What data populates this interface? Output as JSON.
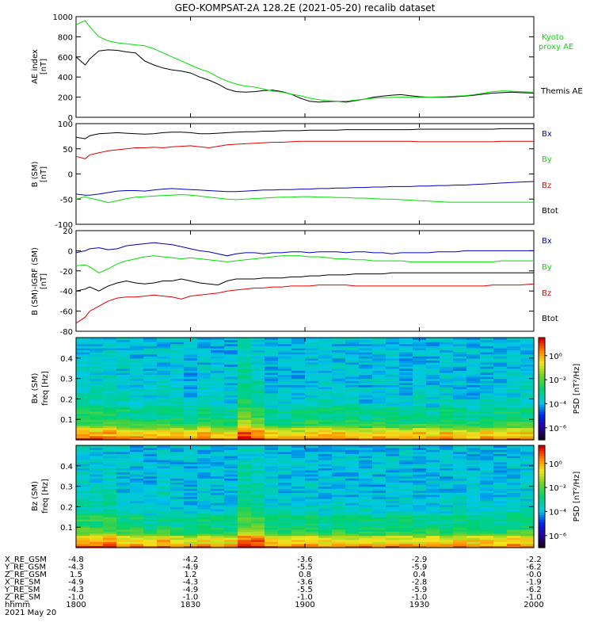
{
  "title": "GEO-KOMPSAT-2A 128.2E (2021-05-20) recalib dataset",
  "colors": {
    "black": "#000000",
    "green": "#00e000",
    "red": "#e00000",
    "blue": "#0000c0"
  },
  "chart_data": [
    {
      "type": "line",
      "panel": "ae",
      "ylabel": "AE index",
      "yunit": "[nT]",
      "ylim": [
        0,
        1000
      ],
      "yticks": [
        "0",
        "200",
        "400",
        "600",
        "800",
        "1000"
      ],
      "x": [
        0,
        2,
        3,
        5,
        7,
        9,
        11,
        13,
        15,
        17,
        19,
        21,
        23,
        25,
        27,
        29,
        31,
        33,
        35,
        37,
        39,
        41,
        43,
        45,
        47,
        49,
        51,
        53,
        55,
        57,
        59,
        61,
        63,
        65,
        67,
        69,
        71,
        73,
        75,
        77,
        79,
        81,
        83,
        85,
        87,
        89,
        91,
        93,
        95,
        97,
        100
      ],
      "series": [
        {
          "name": "Themis AE",
          "color": "black",
          "values": [
            600,
            520,
            580,
            660,
            670,
            665,
            650,
            640,
            560,
            520,
            490,
            470,
            460,
            440,
            400,
            370,
            330,
            280,
            255,
            250,
            255,
            265,
            270,
            255,
            230,
            190,
            160,
            150,
            155,
            160,
            150,
            165,
            180,
            200,
            210,
            220,
            225,
            215,
            205,
            200,
            200,
            200,
            205,
            210,
            220,
            230,
            240,
            245,
            250,
            245,
            240
          ]
        },
        {
          "name": "Kyoto proxy AE",
          "color": "green",
          "values": [
            920,
            960,
            900,
            800,
            760,
            740,
            730,
            720,
            710,
            680,
            640,
            600,
            560,
            520,
            480,
            450,
            400,
            360,
            330,
            310,
            300,
            280,
            260,
            250,
            230,
            215,
            190,
            175,
            165,
            160,
            160,
            170,
            180,
            190,
            195,
            198,
            200,
            200,
            198,
            200,
            202,
            205,
            210,
            215,
            225,
            240,
            255,
            262,
            260,
            255,
            250
          ]
        }
      ]
    },
    {
      "type": "line",
      "panel": "b",
      "ylabel": "B (SM)",
      "yunit": "[nT]",
      "ylim": [
        -100,
        100
      ],
      "yticks": [
        "-100",
        "-50",
        "0",
        "50",
        "100"
      ],
      "x": [
        0,
        2,
        3,
        5,
        7,
        9,
        11,
        13,
        15,
        17,
        19,
        21,
        23,
        25,
        27,
        29,
        31,
        33,
        35,
        37,
        39,
        41,
        43,
        45,
        47,
        49,
        51,
        53,
        55,
        57,
        59,
        61,
        63,
        65,
        67,
        69,
        71,
        73,
        75,
        77,
        79,
        81,
        83,
        85,
        87,
        89,
        91,
        93,
        95,
        97,
        100
      ],
      "series": [
        {
          "name": "Bx",
          "color": "blue",
          "values": [
            -40,
            -42,
            -42,
            -40,
            -37,
            -34,
            -33,
            -33,
            -34,
            -32,
            -30,
            -29,
            -30,
            -31,
            -32,
            -33,
            -34,
            -35,
            -35,
            -34,
            -33,
            -32,
            -32,
            -31,
            -31,
            -30,
            -30,
            -29,
            -29,
            -28,
            -28,
            -27,
            -27,
            -26,
            -26,
            -25,
            -25,
            -25,
            -24,
            -24,
            -23,
            -23,
            -22,
            -22,
            -21,
            -20,
            -19,
            -18,
            -17,
            -16,
            -15
          ]
        },
        {
          "name": "By",
          "color": "green",
          "values": [
            -50,
            -45,
            -48,
            -52,
            -57,
            -53,
            -49,
            -46,
            -45,
            -44,
            -43,
            -42,
            -41,
            -42,
            -44,
            -46,
            -48,
            -50,
            -51,
            -50,
            -49,
            -48,
            -47,
            -46,
            -46,
            -45,
            -45,
            -46,
            -46,
            -47,
            -47,
            -48,
            -48,
            -49,
            -50,
            -50,
            -51,
            -52,
            -53,
            -54,
            -55,
            -56,
            -56,
            -56,
            -56,
            -56,
            -56,
            -56,
            -56,
            -56,
            -56
          ]
        },
        {
          "name": "Bz",
          "color": "red",
          "values": [
            35,
            30,
            38,
            42,
            46,
            48,
            50,
            52,
            52,
            53,
            52,
            54,
            55,
            56,
            54,
            52,
            55,
            58,
            59,
            60,
            61,
            62,
            63,
            63,
            64,
            65,
            65,
            65,
            65,
            65,
            65,
            65,
            65,
            65,
            65,
            65,
            65,
            65,
            64,
            64,
            64,
            64,
            64,
            64,
            64,
            64,
            64,
            65,
            65,
            65,
            65
          ]
        },
        {
          "name": "Btot",
          "color": "black",
          "values": [
            73,
            70,
            76,
            80,
            81,
            82,
            81,
            80,
            79,
            80,
            82,
            83,
            83,
            82,
            80,
            80,
            81,
            82,
            83,
            84,
            84,
            85,
            85,
            86,
            86,
            86,
            87,
            87,
            87,
            87,
            88,
            88,
            88,
            88,
            88,
            88,
            88,
            88,
            89,
            89,
            89,
            89,
            89,
            89,
            89,
            89,
            89,
            90,
            90,
            90,
            90
          ]
        }
      ]
    },
    {
      "type": "line",
      "panel": "db",
      "ylabel": "B (SM)-IGRF (SM)",
      "yunit": "[nT]",
      "ylim": [
        -80,
        20
      ],
      "yticks": [
        "-80",
        "-60",
        "-40",
        "-20",
        "0",
        "20"
      ],
      "x": [
        0,
        2,
        3,
        5,
        7,
        9,
        11,
        13,
        15,
        17,
        19,
        21,
        23,
        25,
        27,
        29,
        31,
        33,
        35,
        37,
        39,
        41,
        43,
        45,
        47,
        49,
        51,
        53,
        55,
        57,
        59,
        61,
        63,
        65,
        67,
        69,
        71,
        73,
        75,
        77,
        79,
        81,
        83,
        85,
        87,
        89,
        91,
        93,
        95,
        97,
        100
      ],
      "series": [
        {
          "name": "Bx",
          "color": "blue",
          "values": [
            -2,
            0,
            2,
            3,
            1,
            2,
            5,
            6,
            7,
            8,
            7,
            6,
            4,
            2,
            0,
            -1,
            -3,
            -5,
            -3,
            -2,
            -2,
            -3,
            -2,
            -2,
            -1,
            -1,
            -2,
            -1,
            -1,
            -1,
            -2,
            -1,
            -1,
            -2,
            -2,
            -3,
            -2,
            -2,
            -2,
            -2,
            -1,
            -1,
            -1,
            0,
            0,
            0,
            0,
            0,
            0,
            0,
            0
          ]
        },
        {
          "name": "By",
          "color": "green",
          "values": [
            -15,
            -14,
            -16,
            -22,
            -18,
            -13,
            -10,
            -8,
            -6,
            -5,
            -6,
            -7,
            -8,
            -7,
            -8,
            -9,
            -10,
            -11,
            -10,
            -9,
            -8,
            -7,
            -6,
            -5,
            -5,
            -5,
            -6,
            -6,
            -7,
            -8,
            -8,
            -9,
            -9,
            -10,
            -10,
            -10,
            -10,
            -11,
            -11,
            -11,
            -11,
            -11,
            -11,
            -11,
            -11,
            -11,
            -11,
            -10,
            -10,
            -10,
            -10
          ]
        },
        {
          "name": "Bz",
          "color": "red",
          "values": [
            -72,
            -66,
            -60,
            -55,
            -50,
            -47,
            -46,
            -46,
            -45,
            -44,
            -45,
            -46,
            -48,
            -45,
            -44,
            -43,
            -42,
            -40,
            -39,
            -38,
            -37,
            -37,
            -36,
            -36,
            -35,
            -35,
            -35,
            -34,
            -34,
            -34,
            -34,
            -35,
            -35,
            -35,
            -35,
            -35,
            -35,
            -35,
            -35,
            -35,
            -35,
            -35,
            -35,
            -35,
            -35,
            -35,
            -34,
            -34,
            -34,
            -34,
            -33
          ]
        },
        {
          "name": "Btot",
          "color": "black",
          "values": [
            -40,
            -38,
            -36,
            -40,
            -35,
            -32,
            -30,
            -32,
            -33,
            -32,
            -30,
            -30,
            -28,
            -30,
            -32,
            -33,
            -34,
            -30,
            -28,
            -28,
            -28,
            -27,
            -27,
            -27,
            -26,
            -26,
            -25,
            -25,
            -24,
            -24,
            -24,
            -23,
            -23,
            -23,
            -23,
            -22,
            -22,
            -22,
            -22,
            -22,
            -22,
            -22,
            -22,
            -22,
            -22,
            -22,
            -22,
            -22,
            -22,
            -22,
            -22
          ]
        }
      ]
    },
    {
      "type": "heatmap",
      "panel": "spec-bx",
      "ylabel": "Bx (SM)",
      "yunit": "freq [Hz]",
      "ylim": [
        0,
        0.5
      ],
      "yticks": [
        "0.1",
        "0.2",
        "0.3",
        "0.4"
      ],
      "colorbar": {
        "label": "PSD [nT²/Hz]",
        "ticks": [
          "10⁰",
          "10⁻²",
          "10⁻⁴",
          "10⁻⁶"
        ],
        "log_range": [
          -7,
          1.5
        ]
      }
    },
    {
      "type": "heatmap",
      "panel": "spec-bz",
      "ylabel": "Bz (SM)",
      "yunit": "freq [Hz]",
      "ylim": [
        0,
        0.5
      ],
      "yticks": [
        "0.1",
        "0.2",
        "0.3",
        "0.4"
      ],
      "colorbar": {
        "label": "PSD [nT²/Hz]",
        "ticks": [
          "10⁰",
          "10⁻²",
          "10⁻⁴",
          "10⁻⁶"
        ],
        "log_range": [
          -7,
          1.5
        ]
      }
    }
  ],
  "ephemeris": {
    "rows": [
      {
        "label": "X_RE_GSM",
        "values": [
          "-4.8",
          "-4.2",
          "-3.6",
          "-2.9",
          "-2.2"
        ]
      },
      {
        "label": "Y_RE_GSM",
        "values": [
          "-4.3",
          "-4.9",
          "-5.5",
          "-5.9",
          "-6.2"
        ]
      },
      {
        "label": "Z_RE_GSM",
        "values": [
          "1.5",
          "1.2",
          "0.8",
          "0.4",
          "-0.0"
        ]
      },
      {
        "label": "X_RE_SM",
        "values": [
          "-4.9",
          "-4.3",
          "-3.6",
          "-2.8",
          "-1.9"
        ]
      },
      {
        "label": "Y_RE_SM",
        "values": [
          "-4.3",
          "-4.9",
          "-5.5",
          "-5.9",
          "-6.2"
        ]
      },
      {
        "label": "Z_RE_SM",
        "values": [
          "-1.0",
          "-1.0",
          "-1.0",
          "-1.0",
          "-1.0"
        ]
      },
      {
        "label": "hhmm",
        "values": [
          "1800",
          "1830",
          "1900",
          "1930",
          "2000"
        ]
      }
    ],
    "date": "2021 May 20"
  }
}
